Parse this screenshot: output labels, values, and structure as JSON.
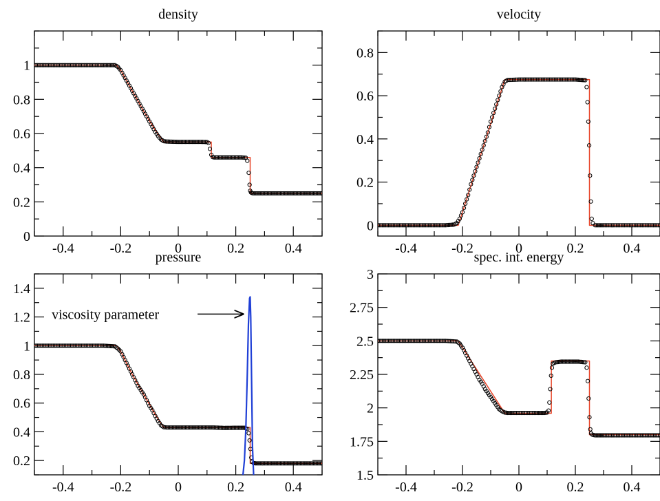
{
  "chart_data": [
    {
      "type": "line",
      "title": "density",
      "xlim": [
        -0.5,
        0.5
      ],
      "ylim": [
        0,
        1.2
      ],
      "xticks": [
        -0.4,
        -0.2,
        0,
        0.2,
        0.4
      ],
      "xtick_labels": [
        "-0.4",
        "-0.2",
        "0",
        "0.2",
        "0.4"
      ],
      "yticks": [
        0,
        0.2,
        0.4,
        0.6,
        0.8,
        1
      ],
      "ytick_labels": [
        "0",
        "0.2",
        "0.4",
        "0.6",
        "0.8",
        "1"
      ],
      "series": [
        {
          "style": "line",
          "color": "#e8462a",
          "x": [
            -0.5,
            -0.215,
            -0.2,
            -0.16,
            -0.12,
            -0.08,
            -0.05,
            0.115,
            0.115,
            0.25,
            0.25,
            0.5
          ],
          "y": [
            1.0,
            1.0,
            0.97,
            0.85,
            0.73,
            0.62,
            0.55,
            0.55,
            0.46,
            0.46,
            0.25,
            0.25
          ]
        },
        {
          "style": "markers",
          "color": "#000000",
          "x": [
            -0.5,
            -0.44,
            -0.38,
            -0.32,
            -0.26,
            -0.22,
            -0.21,
            -0.2,
            -0.19,
            -0.18,
            -0.17,
            -0.16,
            -0.15,
            -0.14,
            -0.13,
            -0.12,
            -0.11,
            -0.1,
            -0.09,
            -0.08,
            -0.07,
            -0.06,
            -0.05,
            -0.04,
            -0.02,
            0.0,
            0.02,
            0.04,
            0.06,
            0.08,
            0.1,
            0.105,
            0.11,
            0.115,
            0.12,
            0.125,
            0.14,
            0.16,
            0.18,
            0.2,
            0.22,
            0.235,
            0.24,
            0.245,
            0.248,
            0.25,
            0.253,
            0.256,
            0.26,
            0.27,
            0.3,
            0.34,
            0.38,
            0.42,
            0.46,
            0.5
          ],
          "y": [
            1.0,
            1.0,
            1.0,
            1.0,
            1.0,
            1.0,
            0.99,
            0.97,
            0.94,
            0.91,
            0.88,
            0.85,
            0.82,
            0.79,
            0.76,
            0.73,
            0.7,
            0.67,
            0.64,
            0.61,
            0.585,
            0.565,
            0.555,
            0.553,
            0.552,
            0.551,
            0.551,
            0.551,
            0.551,
            0.551,
            0.55,
            0.545,
            0.51,
            0.475,
            0.462,
            0.46,
            0.46,
            0.46,
            0.46,
            0.46,
            0.46,
            0.458,
            0.44,
            0.37,
            0.3,
            0.265,
            0.255,
            0.252,
            0.25,
            0.25,
            0.25,
            0.25,
            0.25,
            0.25,
            0.25,
            0.25
          ]
        }
      ]
    },
    {
      "type": "line",
      "title": "velocity",
      "xlim": [
        -0.5,
        0.5
      ],
      "ylim": [
        -0.05,
        0.9
      ],
      "xticks": [
        -0.4,
        -0.2,
        0,
        0.2,
        0.4
      ],
      "xtick_labels": [
        "-0.4",
        "-0.2",
        "0",
        "0.2",
        "0.4"
      ],
      "yticks": [
        0,
        0.2,
        0.4,
        0.6,
        0.8
      ],
      "ytick_labels": [
        "0",
        "0.2",
        "0.4",
        "0.6",
        "0.8"
      ],
      "series": [
        {
          "style": "line",
          "color": "#e8462a",
          "x": [
            -0.5,
            -0.215,
            -0.05,
            0.25,
            0.25,
            0.5
          ],
          "y": [
            0.0,
            0.0,
            0.675,
            0.675,
            0.0,
            0.0
          ]
        },
        {
          "style": "markers",
          "color": "#000000",
          "x": [
            -0.5,
            -0.44,
            -0.38,
            -0.32,
            -0.26,
            -0.23,
            -0.22,
            -0.21,
            -0.2,
            -0.19,
            -0.18,
            -0.17,
            -0.16,
            -0.15,
            -0.14,
            -0.13,
            -0.12,
            -0.11,
            -0.1,
            -0.09,
            -0.08,
            -0.07,
            -0.06,
            -0.05,
            -0.04,
            0.0,
            0.04,
            0.08,
            0.12,
            0.16,
            0.2,
            0.235,
            0.24,
            0.243,
            0.246,
            0.249,
            0.252,
            0.255,
            0.258,
            0.262,
            0.27,
            0.3,
            0.34,
            0.38,
            0.42,
            0.46,
            0.5
          ],
          "y": [
            0.0,
            0.0,
            0.0,
            0.0,
            0.0,
            0.003,
            0.01,
            0.03,
            0.06,
            0.1,
            0.14,
            0.19,
            0.23,
            0.27,
            0.31,
            0.35,
            0.39,
            0.43,
            0.48,
            0.52,
            0.56,
            0.6,
            0.64,
            0.665,
            0.673,
            0.675,
            0.675,
            0.675,
            0.675,
            0.675,
            0.675,
            0.672,
            0.64,
            0.57,
            0.48,
            0.37,
            0.23,
            0.11,
            0.03,
            0.01,
            0.0,
            0.0,
            0.0,
            0.0,
            0.0,
            0.0,
            0.0
          ]
        }
      ]
    },
    {
      "type": "line",
      "title": "pressure",
      "xlim": [
        -0.5,
        0.5
      ],
      "ylim": [
        0.1,
        1.5
      ],
      "xticks": [
        -0.4,
        -0.2,
        0,
        0.2,
        0.4
      ],
      "xtick_labels": [
        "-0.4",
        "-0.2",
        "0",
        "0.2",
        "0.4"
      ],
      "yticks": [
        0.2,
        0.4,
        0.6,
        0.8,
        1,
        1.2,
        1.4
      ],
      "ytick_labels": [
        "0.2",
        "0.4",
        "0.6",
        "0.8",
        "1",
        "1.2",
        "1.4"
      ],
      "annotation": {
        "text": "viscosity parameter",
        "x": -0.44,
        "y": 1.22,
        "arrow_to": [
          0.225,
          1.22
        ]
      },
      "series": [
        {
          "style": "line",
          "color": "#e8462a",
          "x": [
            -0.5,
            -0.215,
            -0.2,
            -0.16,
            -0.12,
            -0.08,
            -0.05,
            0.25,
            0.25,
            0.5
          ],
          "y": [
            1.0,
            1.0,
            0.96,
            0.8,
            0.66,
            0.52,
            0.43,
            0.43,
            0.18,
            0.18
          ]
        },
        {
          "style": "markers",
          "color": "#000000",
          "x": [
            -0.5,
            -0.44,
            -0.38,
            -0.32,
            -0.26,
            -0.22,
            -0.21,
            -0.2,
            -0.19,
            -0.18,
            -0.17,
            -0.16,
            -0.15,
            -0.14,
            -0.13,
            -0.12,
            -0.11,
            -0.1,
            -0.09,
            -0.08,
            -0.07,
            -0.06,
            -0.05,
            -0.04,
            0.0,
            0.04,
            0.08,
            0.12,
            0.16,
            0.2,
            0.23,
            0.24,
            0.245,
            0.248,
            0.251,
            0.254,
            0.257,
            0.262,
            0.27,
            0.3,
            0.34,
            0.38,
            0.42,
            0.46,
            0.5
          ],
          "y": [
            1.0,
            1.0,
            1.0,
            1.0,
            1.0,
            0.995,
            0.98,
            0.96,
            0.92,
            0.88,
            0.84,
            0.8,
            0.76,
            0.72,
            0.69,
            0.66,
            0.62,
            0.58,
            0.55,
            0.51,
            0.475,
            0.445,
            0.432,
            0.43,
            0.43,
            0.43,
            0.43,
            0.43,
            0.427,
            0.428,
            0.428,
            0.42,
            0.39,
            0.34,
            0.28,
            0.22,
            0.19,
            0.182,
            0.18,
            0.18,
            0.18,
            0.18,
            0.18,
            0.18,
            0.18
          ]
        },
        {
          "style": "line",
          "color": "#1f3fd6",
          "x": [
            0.225,
            0.23,
            0.235,
            0.24,
            0.244,
            0.248,
            0.25,
            0.252,
            0.255,
            0.258,
            0.262
          ],
          "y": [
            0.1,
            0.2,
            0.42,
            0.8,
            1.15,
            1.33,
            1.34,
            1.2,
            0.75,
            0.3,
            0.1
          ]
        }
      ]
    },
    {
      "type": "line",
      "title": "spec. int. energy",
      "xlim": [
        -0.5,
        0.5
      ],
      "ylim": [
        1.5,
        3
      ],
      "xticks": [
        -0.4,
        -0.2,
        0,
        0.2,
        0.4
      ],
      "xtick_labels": [
        "-0.4",
        "-0.2",
        "0",
        "0.2",
        "0.4"
      ],
      "yticks": [
        1.5,
        1.75,
        2,
        2.25,
        2.5,
        2.75,
        3
      ],
      "ytick_labels": [
        "1.5",
        "1.75",
        "2",
        "2.25",
        "2.5",
        "2.75",
        "3"
      ],
      "series": [
        {
          "style": "line",
          "color": "#e8462a",
          "x": [
            -0.5,
            -0.215,
            -0.05,
            0.115,
            0.115,
            0.25,
            0.25,
            0.5
          ],
          "y": [
            2.5,
            2.5,
            1.96,
            1.96,
            2.35,
            2.35,
            1.8,
            1.8
          ]
        },
        {
          "style": "markers",
          "color": "#000000",
          "x": [
            -0.5,
            -0.44,
            -0.38,
            -0.32,
            -0.26,
            -0.22,
            -0.21,
            -0.2,
            -0.19,
            -0.18,
            -0.17,
            -0.16,
            -0.15,
            -0.14,
            -0.13,
            -0.12,
            -0.11,
            -0.1,
            -0.09,
            -0.08,
            -0.07,
            -0.06,
            -0.05,
            -0.04,
            -0.02,
            0.02,
            0.06,
            0.09,
            0.1,
            0.105,
            0.108,
            0.111,
            0.114,
            0.117,
            0.12,
            0.125,
            0.13,
            0.15,
            0.18,
            0.21,
            0.235,
            0.24,
            0.244,
            0.247,
            0.25,
            0.253,
            0.256,
            0.26,
            0.27,
            0.3,
            0.34,
            0.38,
            0.42,
            0.46,
            0.5
          ],
          "y": [
            2.5,
            2.5,
            2.5,
            2.5,
            2.5,
            2.495,
            2.48,
            2.45,
            2.41,
            2.37,
            2.33,
            2.29,
            2.25,
            2.21,
            2.18,
            2.14,
            2.11,
            2.08,
            2.05,
            2.02,
            1.99,
            1.975,
            1.965,
            1.962,
            1.962,
            1.962,
            1.962,
            1.962,
            1.965,
            1.98,
            2.04,
            2.14,
            2.24,
            2.3,
            2.33,
            2.335,
            2.34,
            2.345,
            2.345,
            2.345,
            2.34,
            2.3,
            2.2,
            2.07,
            1.93,
            1.84,
            1.81,
            1.8,
            1.795,
            1.795,
            1.795,
            1.795,
            1.795,
            1.795,
            1.795
          ]
        }
      ]
    }
  ]
}
